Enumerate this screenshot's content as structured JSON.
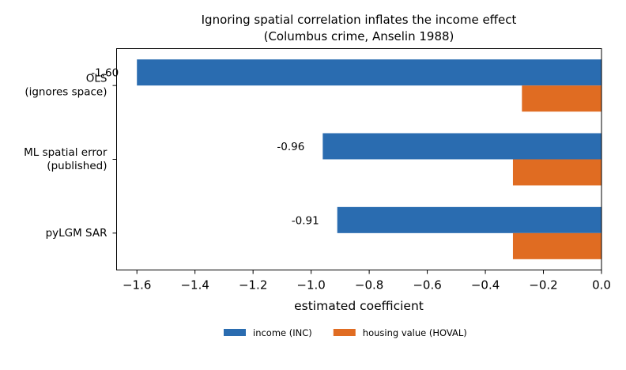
{
  "chart_data": {
    "type": "bar",
    "orientation": "horizontal",
    "title": "Ignoring spatial correlation inflates the income effect",
    "subtitle": "(Columbus crime, Anselin 1988)",
    "xlabel": "estimated coefficient",
    "ylabel": "",
    "categories": [
      [
        "OLS",
        "(ignores space)"
      ],
      [
        "ML spatial error",
        "(published)"
      ],
      [
        "pyLGM SAR"
      ]
    ],
    "series": [
      {
        "name": "income (INC)",
        "color": "#2a6cb0",
        "values": [
          -1.6,
          -0.96,
          -0.91
        ],
        "labels": [
          "-1.60",
          "-0.96",
          "-0.91"
        ]
      },
      {
        "name": "housing value (HOVAL)",
        "color": "#e06c22",
        "values": [
          -0.274,
          -0.305,
          -0.305
        ]
      }
    ],
    "xlim": [
      -1.67,
      0.0
    ],
    "xticks": [
      -1.6,
      -1.4,
      -1.2,
      -1.0,
      -0.8,
      -0.6,
      -0.4,
      -0.2,
      0.0
    ],
    "xtick_labels": [
      "−1.6",
      "−1.4",
      "−1.2",
      "−1.0",
      "−0.8",
      "−0.6",
      "−0.4",
      "−0.2",
      "0.0"
    ],
    "grid": false,
    "legend_position": "bottom-center"
  }
}
